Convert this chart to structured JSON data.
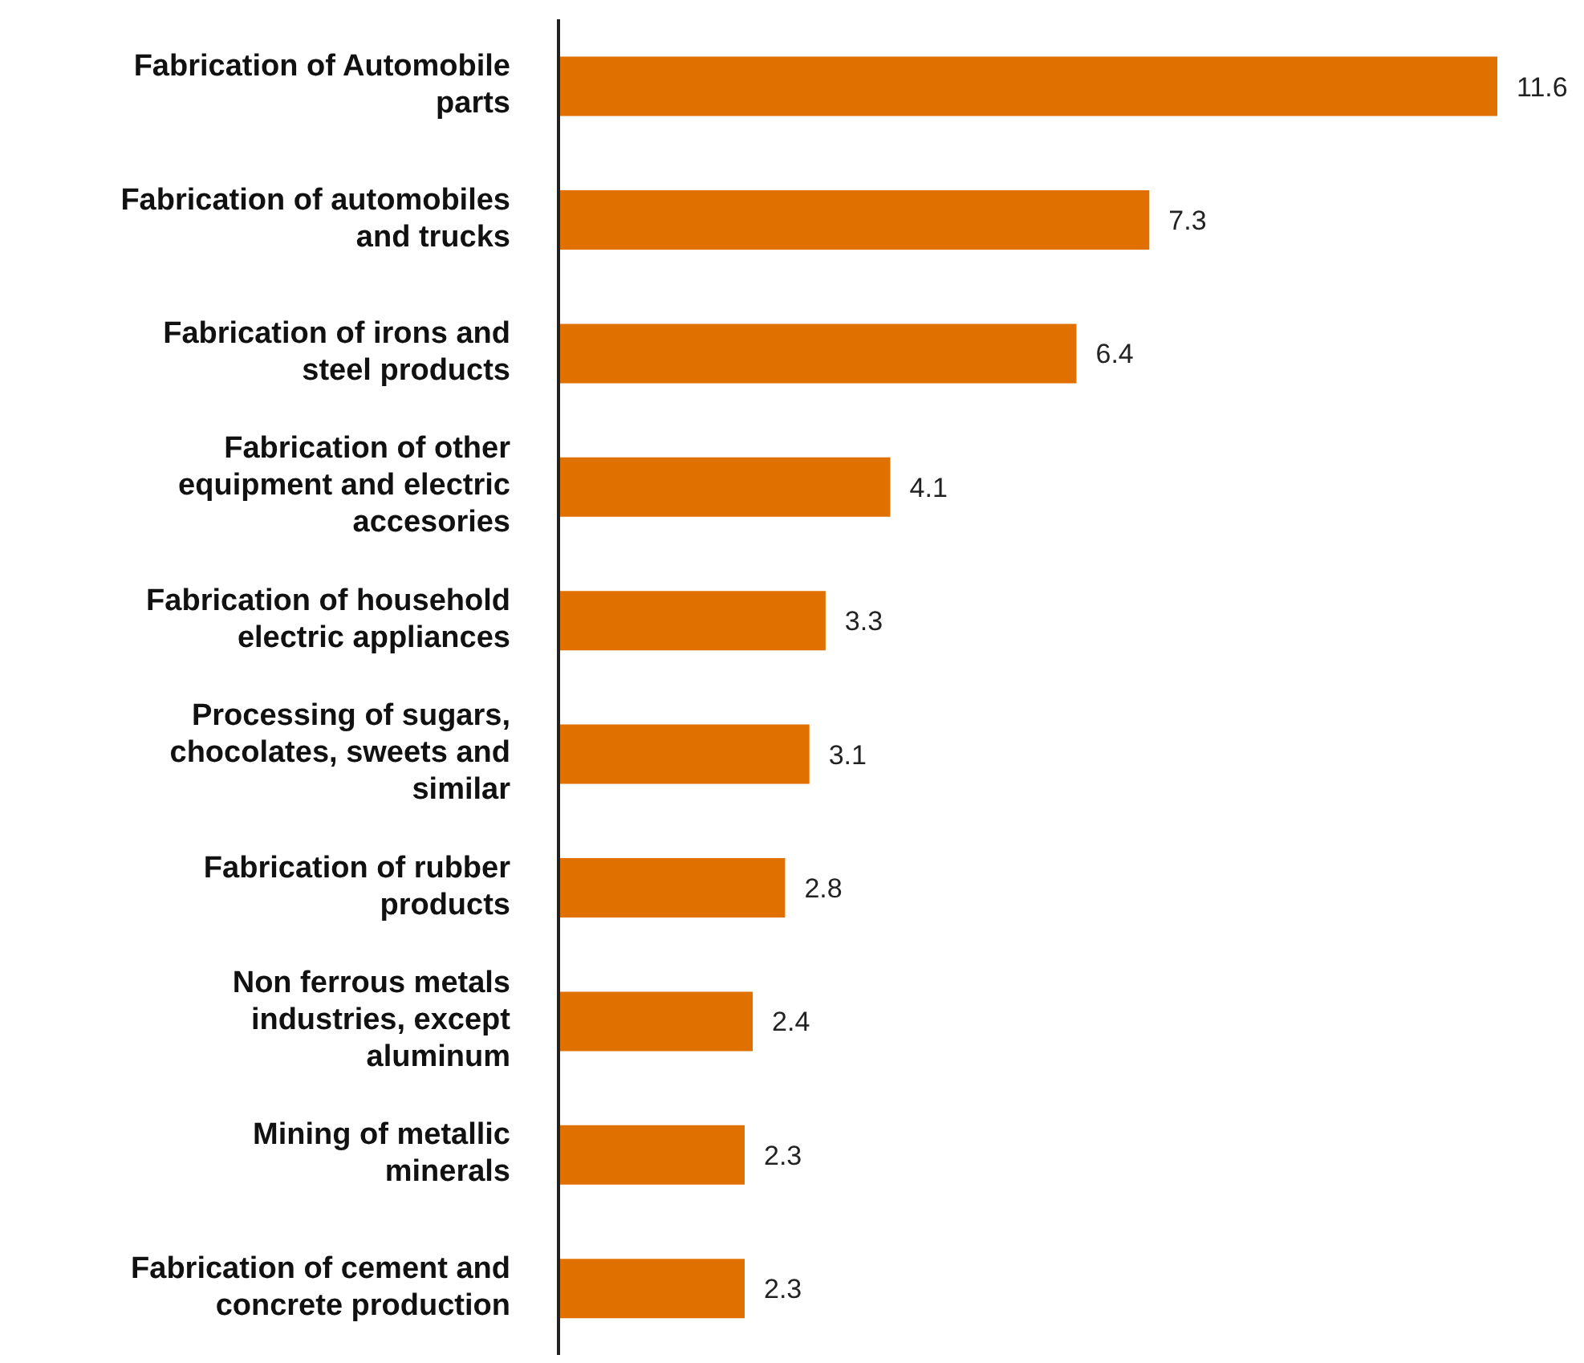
{
  "chart_data": {
    "type": "bar",
    "orientation": "horizontal",
    "categories": [
      "Fabrication of Automobile parts",
      "Fabrication of automobiles and trucks",
      "Fabrication of irons and steel products",
      "Fabrication of other equipment and electric accesories",
      "Fabrication of household electric appliances",
      "Processing of sugars, chocolates, sweets and similar",
      "Fabrication of rubber products",
      "Non ferrous metals industries, except aluminum",
      "Mining of metallic minerals",
      "Fabrication of cement and concrete production"
    ],
    "values": [
      11.6,
      7.3,
      6.4,
      4.1,
      3.3,
      3.1,
      2.8,
      2.4,
      2.3,
      2.3
    ],
    "color": "#e07000",
    "data_labels": true
  }
}
